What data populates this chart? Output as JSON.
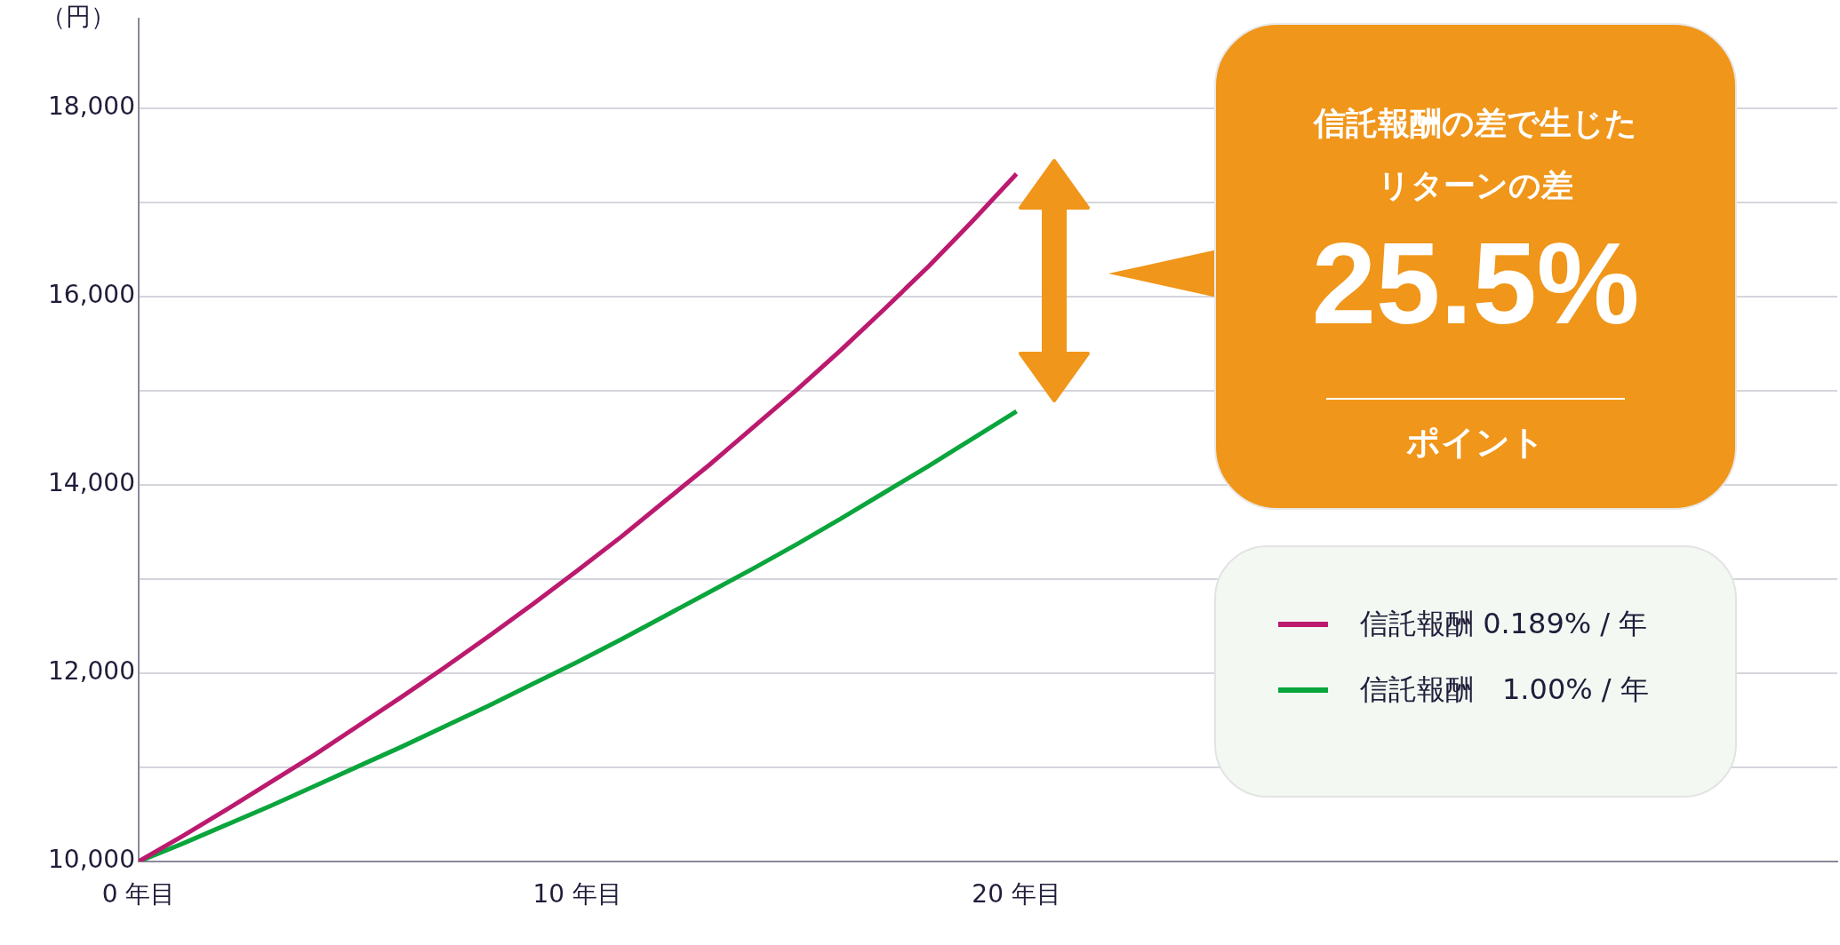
{
  "chart_data": {
    "type": "line",
    "ylabel": "（円）",
    "annotations": [
      "信託報酬の差で生じたリターンの差",
      "25.5%",
      "ポイント"
    ],
    "x": [
      0,
      1,
      2,
      3,
      4,
      5,
      6,
      7,
      8,
      9,
      10,
      11,
      12,
      13,
      14,
      15,
      16,
      17,
      18,
      19,
      20
    ],
    "series": [
      {
        "name": "信託報酬 0.189% / 年",
        "color": "#bb1a6f",
        "values": [
          10000,
          10270,
          10550,
          10840,
          11130,
          11440,
          11750,
          12070,
          12400,
          12740,
          13090,
          13450,
          13830,
          14210,
          14610,
          15010,
          15430,
          15870,
          16320,
          16800,
          17300
        ]
      },
      {
        "name": "信託報酬　1.00% / 年",
        "color": "#0aa53c",
        "values": [
          10000,
          10190,
          10390,
          10590,
          10800,
          11010,
          11220,
          11440,
          11660,
          11890,
          12120,
          12360,
          12610,
          12860,
          13110,
          13370,
          13640,
          13920,
          14200,
          14490,
          14780
        ]
      }
    ],
    "xlim": [
      0,
      38.7
    ],
    "xticks": [
      {
        "value": 0,
        "label": "0 年目"
      },
      {
        "value": 10,
        "label": "10 年目"
      },
      {
        "value": 20,
        "label": "20 年目"
      }
    ],
    "ylim": [
      10000,
      18950
    ],
    "yticks": [
      {
        "value": 10000,
        "label": "10,000"
      },
      {
        "value": 11000,
        "label": null
      },
      {
        "value": 12000,
        "label": "12,000"
      },
      {
        "value": 13000,
        "label": null
      },
      {
        "value": 14000,
        "label": "14,000"
      },
      {
        "value": 15000,
        "label": null
      },
      {
        "value": 16000,
        "label": "16,000"
      },
      {
        "value": 17000,
        "label": null
      },
      {
        "value": 18000,
        "label": "18,000"
      }
    ],
    "grid": "y",
    "legend": "right",
    "marker": "none",
    "line_style": "solid"
  }
}
